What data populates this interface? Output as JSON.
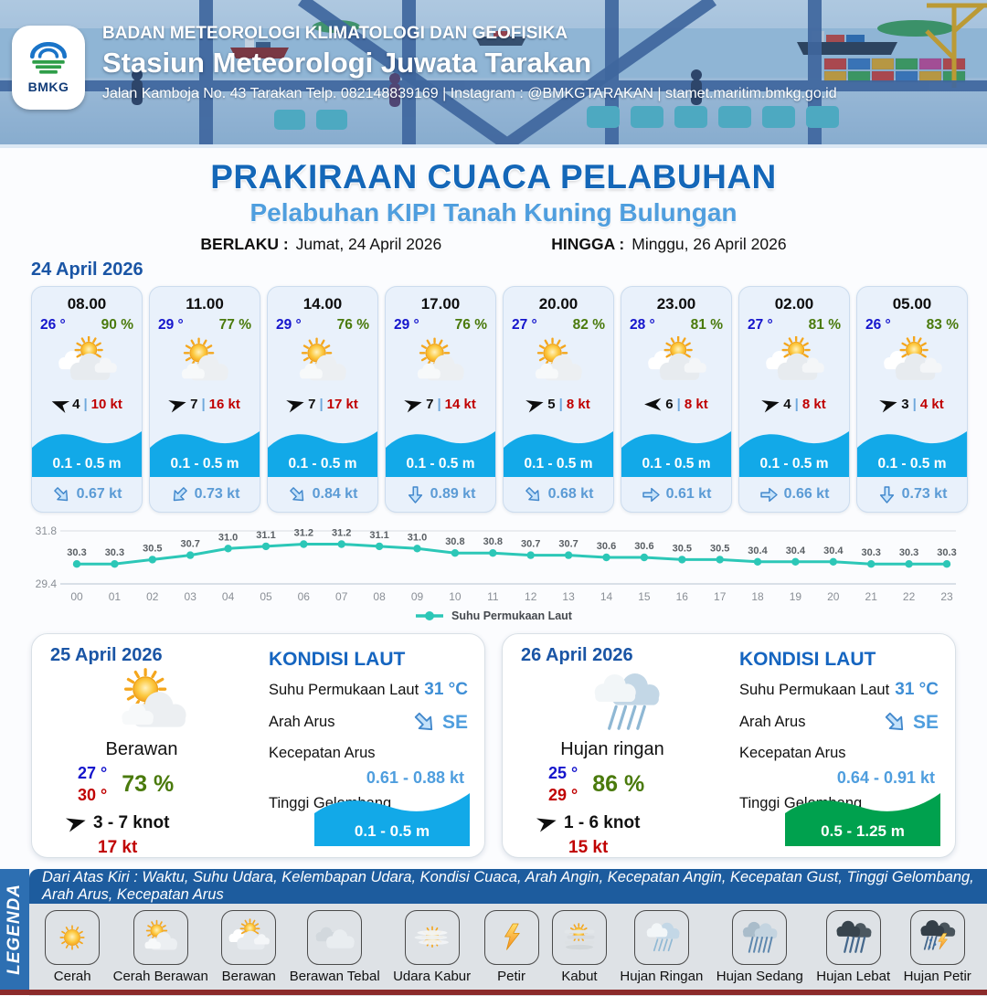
{
  "colors": {
    "accent_blue": "#1565c0",
    "light_blue": "#4f9ede",
    "temp_blue": "#1515cc",
    "humidity_green": "#4a7a0c",
    "gust_red": "#c00000",
    "wave_cyan": "#12a9e8",
    "wave_green": "#00a14e",
    "sst_teal": "#2cc7b7"
  },
  "header": {
    "agency": "BADAN METEOROLOGI KLIMATOLOGI DAN GEOFISIKA",
    "station": "Stasiun Meteorologi Juwata Tarakan",
    "address": "Jalan Kamboja No. 43 Tarakan  Telp. 082148839169 | Instagram : @BMKGTARAKAN | stamet.maritim.bmkg.go.id",
    "logo_text": "BMKG"
  },
  "title": {
    "main": "PRAKIRAAN CUACA PELABUHAN",
    "subtitle": "Pelabuhan KIPI Tanah Kuning Bulungan",
    "berlaku_label": "BERLAKU :",
    "berlaku_value": "Jumat, 24 April 2026",
    "hingga_label": "HINGGA :",
    "hingga_value": "Minggu, 26 April 2026"
  },
  "forecast": {
    "date": "24 April 2026",
    "divider": "|",
    "cards": [
      {
        "time": "08.00",
        "temp": "26 °",
        "humidity": "90 %",
        "icon": "berawan",
        "wind_speed": "4",
        "gust": "10 kt",
        "wind_dir_deg": 200,
        "wave": "0.1 - 0.5 m",
        "current_speed": "0.67 kt",
        "current_dir_deg": 45
      },
      {
        "time": "11.00",
        "temp": "29 °",
        "humidity": "77 %",
        "icon": "cerah-berawan",
        "wind_speed": "7",
        "gust": "16 kt",
        "wind_dir_deg": -15,
        "wave": "0.1 - 0.5 m",
        "current_speed": "0.73 kt",
        "current_dir_deg": 135
      },
      {
        "time": "14.00",
        "temp": "29 °",
        "humidity": "76 %",
        "icon": "cerah-berawan",
        "wind_speed": "7",
        "gust": "17 kt",
        "wind_dir_deg": -15,
        "wave": "0.1 - 0.5 m",
        "current_speed": "0.84 kt",
        "current_dir_deg": 45
      },
      {
        "time": "17.00",
        "temp": "29 °",
        "humidity": "76 %",
        "icon": "cerah-berawan",
        "wind_speed": "7",
        "gust": "14 kt",
        "wind_dir_deg": -15,
        "wave": "0.1 - 0.5 m",
        "current_speed": "0.89 kt",
        "current_dir_deg": 90
      },
      {
        "time": "20.00",
        "temp": "27 °",
        "humidity": "82 %",
        "icon": "cerah-berawan",
        "wind_speed": "5",
        "gust": "8 kt",
        "wind_dir_deg": -15,
        "wave": "0.1 - 0.5 m",
        "current_speed": "0.68 kt",
        "current_dir_deg": 45
      },
      {
        "time": "23.00",
        "temp": "28 °",
        "humidity": "81 %",
        "icon": "berawan",
        "wind_speed": "6",
        "gust": "8 kt",
        "wind_dir_deg": 180,
        "wave": "0.1 - 0.5 m",
        "current_speed": "0.61 kt",
        "current_dir_deg": 0
      },
      {
        "time": "02.00",
        "temp": "27 °",
        "humidity": "81 %",
        "icon": "berawan",
        "wind_speed": "4",
        "gust": "8 kt",
        "wind_dir_deg": -15,
        "wave": "0.1 - 0.5 m",
        "current_speed": "0.66 kt",
        "current_dir_deg": 0
      },
      {
        "time": "05.00",
        "temp": "26 °",
        "humidity": "83 %",
        "icon": "berawan",
        "wind_speed": "3",
        "gust": "4 kt",
        "wind_dir_deg": -15,
        "wave": "0.1 - 0.5 m",
        "current_speed": "0.73 kt",
        "current_dir_deg": 90
      }
    ]
  },
  "chart_data": {
    "type": "line",
    "x": [
      "00",
      "01",
      "02",
      "03",
      "04",
      "05",
      "06",
      "07",
      "08",
      "09",
      "10",
      "11",
      "12",
      "13",
      "14",
      "15",
      "16",
      "17",
      "18",
      "19",
      "20",
      "21",
      "22",
      "23"
    ],
    "series": [
      {
        "name": "Suhu Permukaan Laut",
        "values": [
          30.3,
          30.3,
          30.5,
          30.7,
          31.0,
          31.1,
          31.2,
          31.2,
          31.1,
          31.0,
          30.8,
          30.8,
          30.7,
          30.7,
          30.6,
          30.6,
          30.5,
          30.5,
          30.4,
          30.4,
          30.4,
          30.3,
          30.3,
          30.3
        ]
      }
    ],
    "ylim": [
      29.4,
      31.8
    ],
    "yticks": [
      "29.4",
      "31.8"
    ],
    "line_color": "#2cc7b7",
    "legend_label": "Suhu Permukaan Laut",
    "legend_position": "bottom",
    "grid": "horizontal-top-only"
  },
  "daily": [
    {
      "date": "25 April 2026",
      "icon": "cerah-berawan",
      "condition": "Berawan",
      "temp_min": "27 °",
      "temp_max": "30 °",
      "humidity": "73 %",
      "wind_range": "3  - 7 knot",
      "gust": "17 kt",
      "wind_dir_deg": -15,
      "sea": {
        "title": "KONDISI LAUT",
        "sst_label": "Suhu Permukaan Laut",
        "sst_value": "31 °C",
        "current_dir_label": "Arah Arus",
        "current_dir_value": "SE",
        "current_dir_deg": 45,
        "current_speed_label": "Kecepatan Arus",
        "current_speed_value": "0.61 - 0.88 kt",
        "wave_label": "Tinggi Gelombang",
        "wave_value": "0.1 - 0.5 m",
        "wave_color": "#12a9e8"
      }
    },
    {
      "date": "26 April 2026",
      "icon": "hujan-ringan",
      "condition": "Hujan ringan",
      "temp_min": "25 °",
      "temp_max": "29 °",
      "humidity": "86 %",
      "wind_range": "1  - 6 knot",
      "gust": "15 kt",
      "wind_dir_deg": -15,
      "sea": {
        "title": "KONDISI LAUT",
        "sst_label": "Suhu Permukaan Laut",
        "sst_value": "31 °C",
        "current_dir_label": "Arah Arus",
        "current_dir_value": "SE",
        "current_dir_deg": 45,
        "current_speed_label": "Kecepatan Arus",
        "current_speed_value": "0.64 - 0.91 kt",
        "wave_label": "Tinggi Gelombang",
        "wave_value": "0.5 - 1.25 m",
        "wave_color": "#00a14e"
      }
    }
  ],
  "legend": {
    "ribbon": "LEGENDA",
    "note": "Dari Atas Kiri : Waktu, Suhu Udara, Kelembapan Udara, Kondisi Cuaca, Arah Angin, Kecepatan Angin, Kecepatan Gust, Tinggi Gelombang, Arah Arus, Kecepatan Arus",
    "items": [
      {
        "label": "Cerah",
        "icon": "cerah"
      },
      {
        "label": "Cerah Berawan",
        "icon": "cerah-berawan"
      },
      {
        "label": "Berawan",
        "icon": "berawan"
      },
      {
        "label": "Berawan Tebal",
        "icon": "berawan-tebal"
      },
      {
        "label": "Udara Kabur",
        "icon": "udara-kabur"
      },
      {
        "label": "Petir",
        "icon": "petir"
      },
      {
        "label": "Kabut",
        "icon": "kabut"
      },
      {
        "label": "Hujan Ringan",
        "icon": "hujan-ringan"
      },
      {
        "label": "Hujan Sedang",
        "icon": "hujan-sedang"
      },
      {
        "label": "Hujan Lebat",
        "icon": "hujan-lebat"
      },
      {
        "label": "Hujan Petir",
        "icon": "hujan-petir"
      }
    ]
  }
}
